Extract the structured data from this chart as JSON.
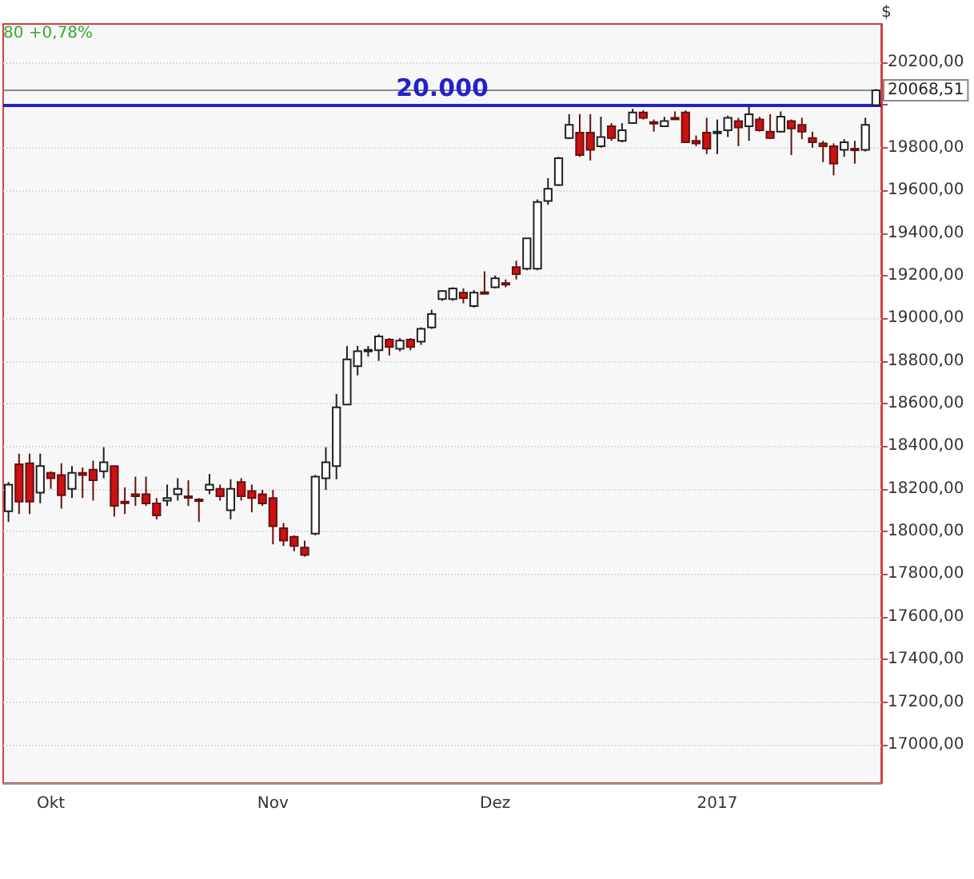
{
  "chart_data": {
    "type": "candlestick",
    "ylabel": "$",
    "annotations": [
      "80 +0,78%"
    ],
    "categories": [
      null,
      null,
      null,
      null,
      "Okt",
      null,
      null,
      null,
      null,
      null,
      null,
      null,
      null,
      null,
      null,
      null,
      null,
      null,
      null,
      null,
      null,
      null,
      null,
      null,
      null,
      "Nov",
      null,
      null,
      null,
      null,
      null,
      null,
      null,
      null,
      null,
      null,
      null,
      null,
      null,
      null,
      null,
      null,
      null,
      null,
      null,
      null,
      "Dez",
      null,
      null,
      null,
      null,
      null,
      null,
      null,
      null,
      null,
      null,
      null,
      null,
      null,
      null,
      null,
      null,
      null,
      null,
      null,
      null,
      "2017",
      null,
      null,
      null,
      null,
      null,
      null,
      null,
      null,
      null,
      null,
      null,
      null,
      null,
      null,
      null
    ],
    "ohlc": [
      [
        18095,
        18232,
        18045,
        18220
      ],
      [
        18315,
        18365,
        18082,
        18140
      ],
      [
        18320,
        18365,
        18082,
        18140
      ],
      [
        18182,
        18365,
        18132,
        18307
      ],
      [
        18275,
        18282,
        18200,
        18250
      ],
      [
        18265,
        18320,
        18107,
        18170
      ],
      [
        18200,
        18307,
        18157,
        18275
      ],
      [
        18275,
        18300,
        18157,
        18265
      ],
      [
        18290,
        18332,
        18145,
        18240
      ],
      [
        18282,
        18395,
        18250,
        18325
      ],
      [
        18307,
        18307,
        18070,
        18120
      ],
      [
        18140,
        18207,
        18082,
        18133
      ],
      [
        18175,
        18257,
        18120,
        18165
      ],
      [
        18175,
        18257,
        18120,
        18132
      ],
      [
        18132,
        18157,
        18057,
        18075
      ],
      [
        18145,
        18220,
        18120,
        18157
      ],
      [
        18175,
        18250,
        18145,
        18200
      ],
      [
        18165,
        18240,
        18120,
        18160
      ],
      [
        18150,
        18157,
        18045,
        18145
      ],
      [
        18195,
        18270,
        18175,
        18220
      ],
      [
        18200,
        18220,
        18145,
        18165
      ],
      [
        18100,
        18245,
        18057,
        18200
      ],
      [
        18232,
        18250,
        18145,
        18165
      ],
      [
        18190,
        18220,
        18090,
        18157
      ],
      [
        18175,
        18195,
        18120,
        18132
      ],
      [
        18157,
        18195,
        17940,
        18025
      ],
      [
        18015,
        18040,
        17932,
        17957
      ],
      [
        17975,
        17982,
        17907,
        17932
      ],
      [
        17925,
        17957,
        17882,
        17890
      ],
      [
        17990,
        18265,
        17982,
        18257
      ],
      [
        18250,
        18395,
        18195,
        18325
      ],
      [
        18307,
        18645,
        18245,
        18582
      ],
      [
        18595,
        18870,
        18595,
        18807
      ],
      [
        18775,
        18870,
        18732,
        18845
      ],
      [
        18845,
        18870,
        18820,
        18852
      ],
      [
        18850,
        18925,
        18800,
        18915
      ],
      [
        18900,
        18907,
        18825,
        18865
      ],
      [
        18857,
        18907,
        18845,
        18895
      ],
      [
        18900,
        18907,
        18850,
        18865
      ],
      [
        18890,
        18957,
        18875,
        18950
      ],
      [
        18957,
        19040,
        18950,
        19020
      ],
      [
        19090,
        19132,
        19082,
        19127
      ],
      [
        19090,
        19145,
        19082,
        19140
      ],
      [
        19120,
        19140,
        19070,
        19095
      ],
      [
        19057,
        19132,
        19050,
        19120
      ],
      [
        19122,
        19220,
        19120,
        19120
      ],
      [
        19145,
        19200,
        19140,
        19187
      ],
      [
        19165,
        19182,
        19145,
        19160
      ],
      [
        19240,
        19270,
        19182,
        19207
      ],
      [
        19232,
        19375,
        19225,
        19375
      ],
      [
        19232,
        19557,
        19225,
        19545
      ],
      [
        19550,
        19657,
        19532,
        19607
      ],
      [
        19625,
        19757,
        19620,
        19750
      ],
      [
        19845,
        19957,
        19840,
        19907
      ],
      [
        19870,
        19957,
        19757,
        19765
      ],
      [
        19870,
        19957,
        19740,
        19790
      ],
      [
        19807,
        19945,
        19800,
        19850
      ],
      [
        19900,
        19915,
        19832,
        19845
      ],
      [
        19832,
        19915,
        19825,
        19882
      ],
      [
        19915,
        19982,
        19915,
        19965
      ],
      [
        19965,
        19975,
        19932,
        19940
      ],
      [
        19920,
        19932,
        19875,
        19915
      ],
      [
        19900,
        19945,
        19900,
        19925
      ],
      [
        19940,
        19970,
        19932,
        19935
      ],
      [
        19965,
        19975,
        19825,
        19825
      ],
      [
        19832,
        19857,
        19807,
        19820
      ],
      [
        19870,
        19940,
        19770,
        19795
      ],
      [
        19870,
        19932,
        19770,
        19875
      ],
      [
        19882,
        19950,
        19850,
        19940
      ],
      [
        19925,
        19940,
        19807,
        19895
      ],
      [
        19900,
        20000,
        19832,
        19957
      ],
      [
        19932,
        19945,
        19875,
        19882
      ],
      [
        19875,
        19957,
        19840,
        19845
      ],
      [
        19875,
        19970,
        19870,
        19945
      ],
      [
        19925,
        19932,
        19765,
        19890
      ],
      [
        19907,
        19940,
        19840,
        19875
      ],
      [
        19845,
        19875,
        19800,
        19825
      ],
      [
        19820,
        19832,
        19732,
        19807
      ],
      [
        19807,
        19820,
        19670,
        19725
      ],
      [
        19790,
        19840,
        19757,
        19825
      ],
      [
        19795,
        19832,
        19725,
        19790
      ],
      [
        19790,
        19940,
        19782,
        19907
      ],
      [
        20000,
        20075,
        20000,
        20068.51
      ]
    ],
    "ylim": [
      16820,
      20380
    ],
    "yticks": [
      {
        "value": 17000,
        "label": "17000,00"
      },
      {
        "value": 17200,
        "label": "17200,00"
      },
      {
        "value": 17400,
        "label": "17400,00"
      },
      {
        "value": 17600,
        "label": "17600,00"
      },
      {
        "value": 17800,
        "label": "17800,00"
      },
      {
        "value": 18000,
        "label": "18000,00"
      },
      {
        "value": 18200,
        "label": "18200,00"
      },
      {
        "value": 18400,
        "label": "18400,00"
      },
      {
        "value": 18600,
        "label": "18600,00"
      },
      {
        "value": 18800,
        "label": "18800,00"
      },
      {
        "value": 19000,
        "label": "19000,00"
      },
      {
        "value": 19200,
        "label": "19200,00"
      },
      {
        "value": 19400,
        "label": "19400,00"
      },
      {
        "value": 19600,
        "label": "19600,00"
      },
      {
        "value": 19800,
        "label": "19800,00"
      },
      {
        "value": 20000,
        "label": null
      },
      {
        "value": 20200,
        "label": "20200,00"
      }
    ],
    "ref_lines": [
      {
        "axis": "y",
        "value": 20000,
        "label": "20.000",
        "color": "#2222cc"
      },
      {
        "axis": "y",
        "value": 20068.51,
        "label": "20068,51",
        "color": "#888888"
      }
    ],
    "grid": "y"
  }
}
